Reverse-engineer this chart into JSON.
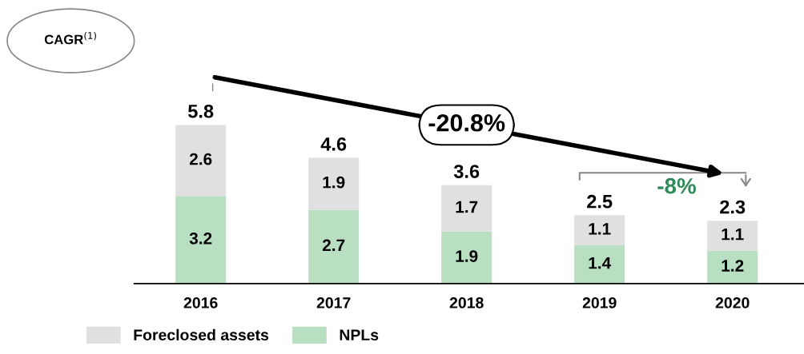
{
  "chart_data": {
    "type": "bar",
    "stacked": true,
    "data_labels": true,
    "categories": [
      "2016",
      "2017",
      "2018",
      "2019",
      "2020"
    ],
    "series": [
      {
        "name": "NPLs",
        "color": "#b9dfc3",
        "values": [
          3.2,
          2.7,
          1.9,
          1.4,
          1.2
        ]
      },
      {
        "name": "Foreclosed assets",
        "color": "#e0e0e0",
        "values": [
          2.6,
          1.9,
          1.7,
          1.1,
          1.1
        ]
      }
    ],
    "totals": [
      "5.8",
      "4.6",
      "3.6",
      "2.5",
      "2.3"
    ],
    "annotations": [
      "CAGR$^{(1)}$",
      "-20.8%",
      "-8%"
    ],
    "legend": "bottom left",
    "grid": false
  }
}
